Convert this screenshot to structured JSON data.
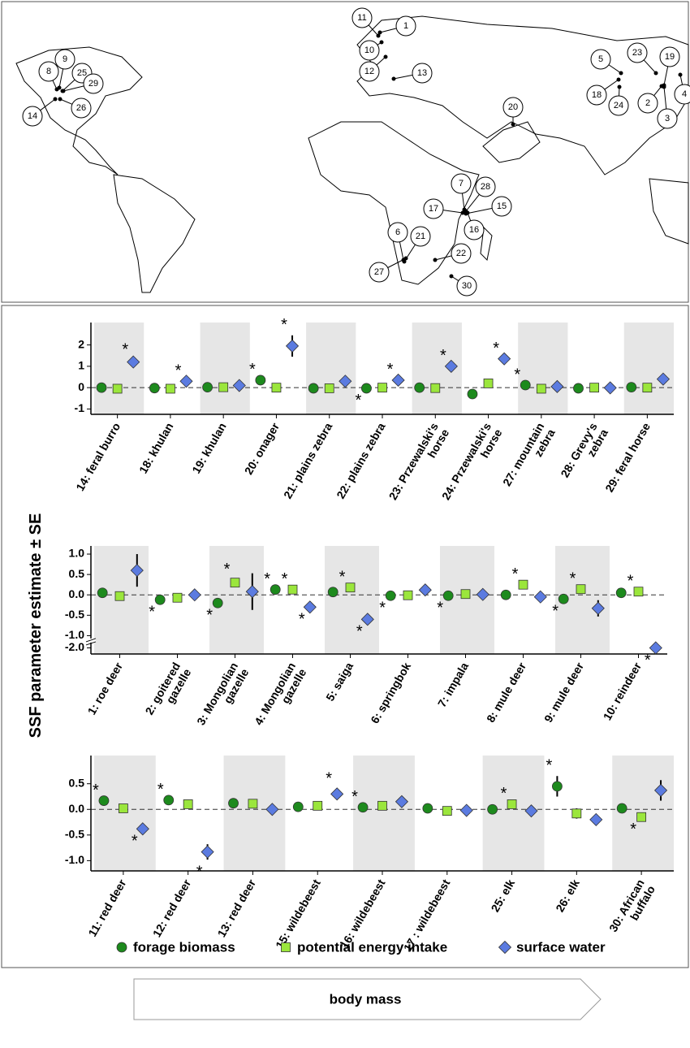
{
  "map": {
    "site_labels": [
      "1",
      "2",
      "3",
      "4",
      "5",
      "6",
      "7",
      "8",
      "9",
      "10",
      "11",
      "12",
      "13",
      "14",
      "15",
      "16",
      "17",
      "18",
      "19",
      "20",
      "21",
      "22",
      "23",
      "24",
      "25",
      "26",
      "27",
      "28",
      "29",
      "30"
    ]
  },
  "y_label": "SSF parameter estimate ± SE",
  "significance_mark": "*",
  "body_mass_label": "body mass",
  "chart_data": [
    {
      "type": "dot",
      "shaded_bands": true,
      "categories": [
        "14: feral burro",
        "18: khulan",
        "19: khulan",
        "20: onager",
        "21: plains zebra",
        "22: plains zebra",
        "23: Przewalski's\nhorse",
        "24: Przewalski's\nhorse",
        "27: mountain\nzebra",
        "28: Grevy's\nzebra",
        "29: feral horse"
      ],
      "ylim": [
        -1.25,
        3.05
      ],
      "yticks": [
        -1,
        0,
        1,
        2
      ],
      "series": [
        {
          "color": "#1d8a1d",
          "marker": "circle",
          "values": [
            0.0,
            -0.02,
            0.02,
            0.35,
            -0.03,
            -0.03,
            0.0,
            -0.3,
            0.12,
            -0.03,
            0.02
          ],
          "errors": [
            null,
            null,
            null,
            null,
            null,
            null,
            null,
            0.1,
            null,
            null,
            null
          ],
          "significant": [
            false,
            false,
            false,
            true,
            false,
            true,
            false,
            false,
            true,
            false,
            false
          ]
        },
        {
          "color": "#9be63c",
          "marker": "square",
          "values": [
            -0.05,
            -0.05,
            0.02,
            0.0,
            -0.03,
            0.0,
            -0.02,
            0.2,
            -0.05,
            0.0,
            0.0
          ],
          "errors": [
            null,
            null,
            null,
            null,
            null,
            null,
            null,
            null,
            null,
            null,
            null
          ],
          "significant": [
            false,
            false,
            false,
            false,
            false,
            false,
            false,
            false,
            false,
            false,
            false
          ]
        },
        {
          "color": "#5b7be0",
          "marker": "diamond",
          "values": [
            1.2,
            0.3,
            0.1,
            1.95,
            0.3,
            0.35,
            1.0,
            1.35,
            0.05,
            -0.01,
            0.4
          ],
          "errors": [
            0.1,
            null,
            null,
            0.5,
            null,
            null,
            null,
            null,
            null,
            null,
            null
          ],
          "significant": [
            true,
            true,
            false,
            true,
            false,
            true,
            true,
            true,
            false,
            false,
            false
          ]
        }
      ]
    },
    {
      "type": "dot",
      "shaded_bands": true,
      "categories": [
        "1: roe deer",
        "2: goitered\ngazelle",
        "3: Mongolian\ngazelle",
        "4: Mongolian\ngazelle",
        "5: saiga",
        "6: springbok",
        "7: impala",
        "8: mule deer",
        "9: mule deer",
        "10: reindeer"
      ],
      "ylim": [
        -2.15,
        1.2
      ],
      "ybreak": [
        -1.75,
        -1.05
      ],
      "yticks": [
        {
          "value": -2,
          "label": "-2.0"
        },
        {
          "value": -1,
          "label": "-1.0"
        },
        -0.5,
        {
          "value": 0,
          "label": "0.0"
        },
        0.5,
        {
          "value": 1,
          "label": "1.0"
        }
      ],
      "series": [
        {
          "color": "#1d8a1d",
          "marker": "circle",
          "values": [
            0.05,
            -0.12,
            -0.2,
            0.13,
            0.07,
            -0.02,
            -0.02,
            0.0,
            -0.1,
            0.05
          ],
          "errors": [
            null,
            null,
            null,
            null,
            null,
            null,
            null,
            null,
            null,
            null
          ],
          "significant": [
            false,
            true,
            true,
            true,
            false,
            true,
            true,
            false,
            true,
            false
          ]
        },
        {
          "color": "#9be63c",
          "marker": "square",
          "values": [
            -0.03,
            -0.07,
            0.3,
            0.13,
            0.18,
            -0.01,
            0.02,
            0.25,
            0.14,
            0.08
          ],
          "errors": [
            null,
            null,
            0.07,
            null,
            null,
            null,
            null,
            null,
            null,
            null
          ],
          "significant": [
            false,
            false,
            true,
            true,
            true,
            false,
            false,
            true,
            true,
            true
          ]
        },
        {
          "color": "#5b7be0",
          "marker": "diamond",
          "values": [
            0.6,
            0.0,
            0.08,
            -0.3,
            -0.6,
            0.12,
            0.01,
            -0.05,
            -0.33,
            -2.0
          ],
          "errors": [
            0.4,
            null,
            0.45,
            null,
            null,
            null,
            null,
            null,
            0.2,
            null
          ],
          "significant": [
            false,
            false,
            false,
            true,
            true,
            false,
            false,
            false,
            false,
            true
          ]
        }
      ]
    },
    {
      "type": "dot",
      "shaded_bands": true,
      "categories": [
        "11: red deer",
        "12: red deer",
        "13: red deer",
        "15: wildebeest",
        "16: wildebeest",
        "17 : wildebeest",
        "25: elk",
        "26: elk",
        "30: African\nbuffalo"
      ],
      "ylim": [
        -1.2,
        1.05
      ],
      "yticks": [
        {
          "value": -1,
          "label": "-1.0"
        },
        -0.5,
        {
          "value": 0,
          "label": "0.0"
        },
        0.5
      ],
      "series": [
        {
          "name": "forage biomass",
          "color": "#1d8a1d",
          "marker": "circle",
          "values": [
            0.17,
            0.18,
            0.12,
            0.05,
            0.04,
            0.02,
            0.0,
            0.45,
            0.02
          ],
          "errors": [
            null,
            null,
            null,
            null,
            null,
            null,
            null,
            0.2,
            null
          ],
          "significant": [
            true,
            true,
            false,
            false,
            true,
            false,
            false,
            true,
            false
          ]
        },
        {
          "name": "potential energy intake",
          "color": "#9be63c",
          "marker": "square",
          "values": [
            0.02,
            0.1,
            0.11,
            0.07,
            0.07,
            -0.03,
            0.1,
            -0.08,
            -0.15
          ],
          "errors": [
            null,
            null,
            null,
            null,
            null,
            null,
            null,
            0.1,
            null
          ],
          "significant": [
            false,
            false,
            false,
            false,
            false,
            false,
            true,
            false,
            true
          ]
        },
        {
          "name": "surface water",
          "color": "#5b7be0",
          "marker": "diamond",
          "values": [
            -0.38,
            -0.83,
            0.0,
            0.3,
            0.15,
            -0.02,
            -0.03,
            -0.2,
            0.37
          ],
          "errors": [
            null,
            0.15,
            null,
            0.1,
            0.1,
            null,
            null,
            null,
            0.2
          ],
          "significant": [
            true,
            true,
            false,
            true,
            false,
            false,
            false,
            false,
            false
          ]
        }
      ]
    }
  ]
}
